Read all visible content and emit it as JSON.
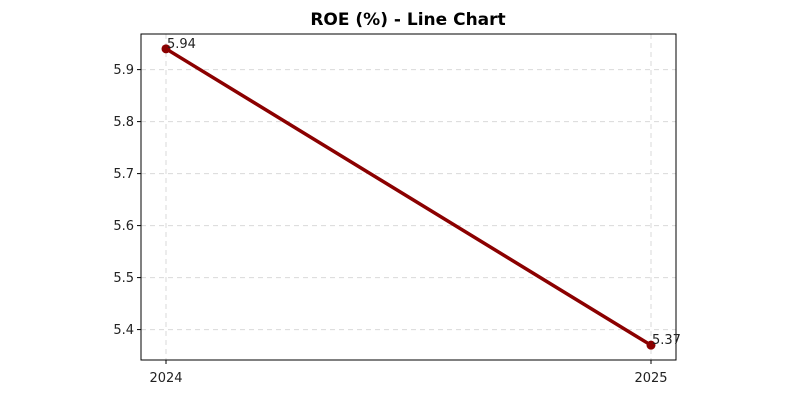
{
  "chart_data": {
    "type": "line",
    "title": "ROE (%) - Line Chart",
    "xlabel": "",
    "ylabel": "",
    "categories": [
      "2024",
      "2025"
    ],
    "series": [
      {
        "values": [
          5.94,
          5.37
        ],
        "color": "#8b0000"
      }
    ],
    "data_labels": [
      "5.94",
      "5.37"
    ],
    "y_ticks": [
      5.4,
      5.5,
      5.6,
      5.7,
      5.8,
      5.9
    ],
    "y_tick_labels": [
      "5.4",
      "5.5",
      "5.6",
      "5.7",
      "5.8",
      "5.9"
    ],
    "ylim": [
      5.3415,
      5.9685
    ],
    "grid": true,
    "legend": "none"
  }
}
